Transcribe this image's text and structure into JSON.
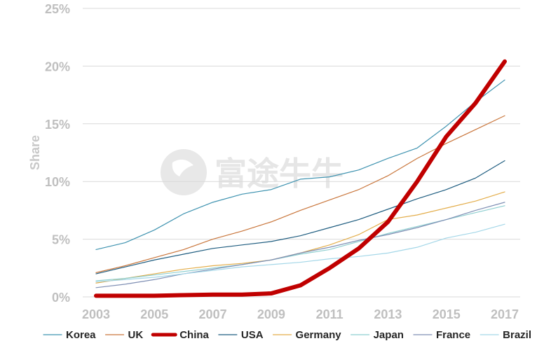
{
  "watermark": {
    "text": "富途牛牛"
  },
  "chart_data": {
    "type": "line",
    "title": "",
    "xlabel": "",
    "ylabel": "Share",
    "x": [
      2003,
      2004,
      2005,
      2006,
      2007,
      2008,
      2009,
      2010,
      2011,
      2012,
      2013,
      2014,
      2015,
      2016,
      2017
    ],
    "x_tick_labels": [
      "2003",
      "2005",
      "2007",
      "2009",
      "2011",
      "2013",
      "2015",
      "2017"
    ],
    "y_tick_labels": [
      "0%",
      "5%",
      "10%",
      "15%",
      "20%",
      "25%"
    ],
    "ylim": [
      0,
      25
    ],
    "xlim": [
      2003,
      2017
    ],
    "grid": "horizontal",
    "legend_position": "bottom",
    "series": [
      {
        "name": "Korea",
        "color": "#3f93b0",
        "width": 1.2,
        "values": [
          4.1,
          4.7,
          5.8,
          7.2,
          8.2,
          8.9,
          9.3,
          10.2,
          10.4,
          11.0,
          12.0,
          12.9,
          14.8,
          16.9,
          18.8
        ]
      },
      {
        "name": "UK",
        "color": "#c9763c",
        "width": 1.2,
        "values": [
          2.1,
          2.7,
          3.4,
          4.1,
          5.0,
          5.7,
          6.5,
          7.5,
          8.4,
          9.3,
          10.5,
          12.0,
          13.3,
          14.5,
          15.7
        ]
      },
      {
        "name": "China",
        "color": "#c00000",
        "width": 6,
        "values": [
          0.1,
          0.1,
          0.1,
          0.15,
          0.2,
          0.2,
          0.3,
          1.0,
          2.5,
          4.2,
          6.5,
          10.0,
          13.9,
          16.8,
          20.4
        ]
      },
      {
        "name": "USA",
        "color": "#1f5d80",
        "width": 1.2,
        "values": [
          2.0,
          2.6,
          3.2,
          3.7,
          4.2,
          4.5,
          4.8,
          5.3,
          6.0,
          6.7,
          7.6,
          8.5,
          9.3,
          10.3,
          11.8
        ]
      },
      {
        "name": "Germany",
        "color": "#e3ad4a",
        "width": 1.2,
        "values": [
          1.2,
          1.6,
          2.0,
          2.4,
          2.7,
          2.9,
          3.2,
          3.8,
          4.5,
          5.4,
          6.7,
          7.1,
          7.7,
          8.3,
          9.1
        ]
      },
      {
        "name": "Japan",
        "color": "#8ecfd0",
        "width": 1.2,
        "values": [
          1.4,
          1.6,
          1.9,
          2.2,
          2.5,
          2.8,
          3.2,
          3.7,
          4.1,
          4.8,
          5.5,
          6.1,
          6.7,
          7.3,
          7.9
        ]
      },
      {
        "name": "France",
        "color": "#7f8fb4",
        "width": 1.2,
        "values": [
          0.8,
          1.1,
          1.5,
          2.0,
          2.4,
          2.8,
          3.2,
          3.8,
          4.3,
          4.9,
          5.4,
          6.0,
          6.7,
          7.5,
          8.2
        ]
      },
      {
        "name": "Brazil",
        "color": "#a4d7e8",
        "width": 1.2,
        "values": [
          1.3,
          1.5,
          1.7,
          2.0,
          2.3,
          2.6,
          2.8,
          3.0,
          3.3,
          3.5,
          3.8,
          4.3,
          5.1,
          5.6,
          6.3
        ]
      }
    ]
  }
}
